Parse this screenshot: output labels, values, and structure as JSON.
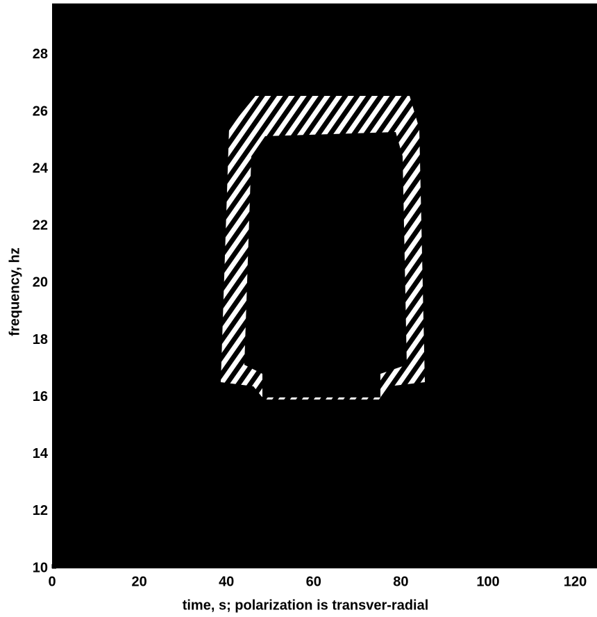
{
  "chart_data": {
    "type": "image",
    "xlabel": "time, s; polarization is transver-radial",
    "ylabel": "frequency, hz",
    "xlim": [
      0,
      125
    ],
    "xticks": [
      0,
      20,
      40,
      60,
      80,
      100,
      120
    ],
    "ylim": [
      10,
      29.8
    ],
    "yticks": [
      10,
      12,
      14,
      16,
      18,
      20,
      22,
      24,
      26,
      28
    ],
    "background": "#000000"
  }
}
